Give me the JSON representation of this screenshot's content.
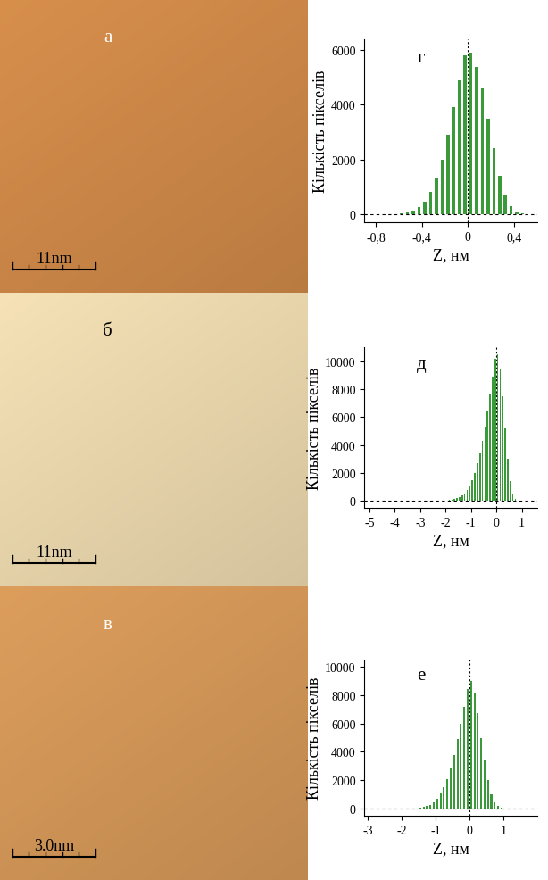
{
  "images": [
    {
      "label": "а",
      "scale_bar": "11nm",
      "color": "#d88f4c",
      "label_color": "#ffffff"
    },
    {
      "label": "б",
      "scale_bar": "11nm",
      "color": "#f6e2b6",
      "label_color": "#000000"
    },
    {
      "label": "в",
      "scale_bar": "3.0nm",
      "color": "#dd9e5c",
      "label_color": "#ffffff"
    }
  ],
  "chart_data": [
    {
      "type": "histogram",
      "annotation": "г",
      "x_label": "Z, нм",
      "y_label": "Кількість пікселів",
      "color": "#3a9a3a",
      "bins": [
        -0.6,
        -0.55,
        -0.5,
        -0.45,
        -0.4,
        -0.35,
        -0.3,
        -0.25,
        -0.2,
        -0.15,
        -0.1,
        -0.05,
        0.0,
        0.05,
        0.1,
        0.15,
        0.2,
        0.25,
        0.3,
        0.35,
        0.4,
        0.45,
        0.5
      ],
      "counts": [
        30,
        60,
        120,
        250,
        450,
        800,
        1300,
        2000,
        2900,
        3900,
        4900,
        5800,
        5900,
        5400,
        4600,
        3500,
        2400,
        1400,
        700,
        300,
        100,
        30
      ],
      "xlim": [
        -0.9,
        0.6
      ],
      "ylim": [
        -300,
        6400
      ],
      "xticks": [
        {
          "value": -0.8,
          "label": "-0,8"
        },
        {
          "value": -0.4,
          "label": "-0,4"
        },
        0,
        {
          "value": 0.4,
          "label": "0,4"
        }
      ],
      "yticks": [
        0,
        2000,
        4000,
        6000
      ]
    },
    {
      "type": "histogram",
      "annotation": "д",
      "x_label": "Z, нм",
      "y_label": "Кількість пікселів",
      "color": "#3a9a3a",
      "bins": [
        -2.0,
        -1.9,
        -1.8,
        -1.7,
        -1.6,
        -1.5,
        -1.4,
        -1.3,
        -1.2,
        -1.1,
        -1.0,
        -0.9,
        -0.8,
        -0.7,
        -0.6,
        -0.5,
        -0.4,
        -0.3,
        -0.2,
        -0.1,
        0.0,
        0.1,
        0.2,
        0.3,
        0.4,
        0.5,
        0.6,
        0.7,
        0.8
      ],
      "counts": [
        30,
        50,
        80,
        120,
        180,
        260,
        380,
        550,
        800,
        1100,
        1500,
        2000,
        2700,
        3400,
        4300,
        5300,
        6400,
        7600,
        8900,
        10200,
        10500,
        9400,
        7500,
        5200,
        3000,
        1400,
        500,
        150
      ],
      "xlim": [
        -5.2,
        1.6
      ],
      "ylim": [
        -500,
        11000
      ],
      "xticks": [
        -5,
        -4,
        -3,
        -2,
        -1,
        0,
        1
      ],
      "yticks": [
        0,
        2000,
        4000,
        6000,
        8000,
        10000
      ]
    },
    {
      "type": "histogram",
      "annotation": "е",
      "x_label": "Z, нм",
      "y_label": "Кількість пікселів",
      "color": "#3a9a3a",
      "bins": [
        -1.6,
        -1.5,
        -1.4,
        -1.3,
        -1.2,
        -1.1,
        -1.0,
        -0.9,
        -0.8,
        -0.7,
        -0.6,
        -0.5,
        -0.4,
        -0.3,
        -0.2,
        -0.1,
        0.0,
        0.1,
        0.2,
        0.3,
        0.4,
        0.5,
        0.6,
        0.7,
        0.8,
        0.9,
        1.0
      ],
      "counts": [
        30,
        60,
        100,
        170,
        280,
        450,
        700,
        1050,
        1500,
        2100,
        2900,
        3800,
        4900,
        6000,
        7200,
        8400,
        9000,
        8200,
        6700,
        5000,
        3400,
        2000,
        1000,
        450,
        170,
        50
      ],
      "xlim": [
        -3.1,
        2.0
      ],
      "ylim": [
        -500,
        10500
      ],
      "xticks": [
        -3,
        -2,
        -1,
        0,
        1
      ],
      "yticks": [
        0,
        2000,
        4000,
        6000,
        8000,
        10000
      ]
    }
  ]
}
